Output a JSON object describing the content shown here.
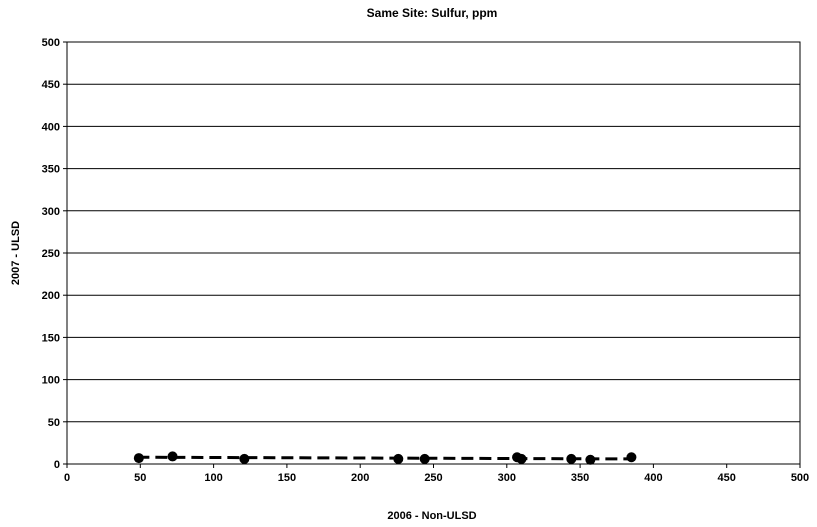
{
  "chart_data": {
    "type": "scatter",
    "title": "Same Site:  Sulfur, ppm",
    "xlabel": "2006 - Non-ULSD",
    "ylabel": "2007 - ULSD",
    "xlim": [
      0,
      500
    ],
    "ylim": [
      0,
      500
    ],
    "xticks": [
      "0",
      "50",
      "100",
      "150",
      "200",
      "250",
      "300",
      "350",
      "400",
      "450",
      "500"
    ],
    "yticks": [
      "0",
      "50",
      "100",
      "150",
      "200",
      "250",
      "300",
      "350",
      "400",
      "450",
      "500"
    ],
    "grid": "horizontal",
    "legend": "none",
    "marker_color": "#000000",
    "trendline": {
      "style": "dashed",
      "color": "#000000",
      "x_range": [
        48,
        385
      ],
      "y_start": 8,
      "y_end": 6
    },
    "points": [
      {
        "x": 49,
        "y": 7
      },
      {
        "x": 72,
        "y": 9
      },
      {
        "x": 121,
        "y": 6
      },
      {
        "x": 226,
        "y": 6
      },
      {
        "x": 244,
        "y": 6
      },
      {
        "x": 307,
        "y": 8
      },
      {
        "x": 310,
        "y": 6
      },
      {
        "x": 344,
        "y": 6
      },
      {
        "x": 357,
        "y": 5
      },
      {
        "x": 385,
        "y": 8
      }
    ]
  }
}
